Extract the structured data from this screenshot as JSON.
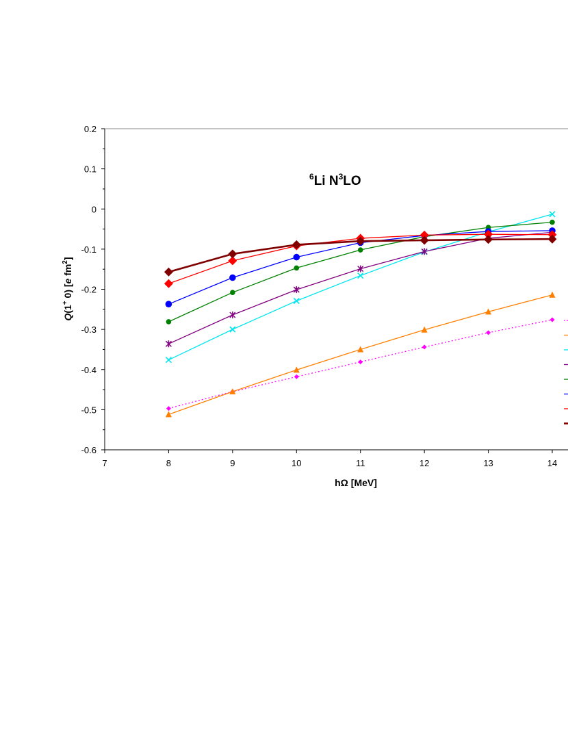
{
  "chart_data": {
    "type": "line",
    "title_parts": {
      "sup1": "6",
      "t1": "Li N",
      "sup2": "3",
      "t2": "LO"
    },
    "xlabel_parts": {
      "t1": "h",
      "omega": "Ω",
      "t2": " [MeV]"
    },
    "ylabel_parts": {
      "q": "Q",
      "p1": "(1",
      "sup_plus": "+",
      "p2": " 0)  [",
      "e": "e",
      "p3": " fm",
      "sup2": "2",
      "p4": "]"
    },
    "xlim": [
      7,
      14
    ],
    "ylim": [
      -0.6,
      0.2
    ],
    "x_ticks": [
      "7",
      "8",
      "9",
      "10",
      "11",
      "12",
      "13",
      "14"
    ],
    "y_ticks": [
      "0.2",
      "0.1",
      "0",
      "-0.1",
      "-0.2",
      "-0.3",
      "-0.4",
      "-0.5",
      "-0.6"
    ],
    "grid": false,
    "legend_placement": "right (cut off)",
    "x": [
      8,
      9,
      10,
      11,
      12,
      13,
      14
    ],
    "series": [
      {
        "color": "#ff00ff",
        "marker": "small-diamond",
        "dash": "dotted",
        "width": 1.3,
        "values": [
          -0.497,
          -0.455,
          -0.418,
          -0.381,
          -0.344,
          -0.308,
          -0.276
        ]
      },
      {
        "color": "#ff7f00",
        "marker": "triangle",
        "dash": "solid",
        "width": 1.3,
        "values": [
          -0.512,
          -0.455,
          -0.401,
          -0.35,
          -0.301,
          -0.256,
          -0.214
        ]
      },
      {
        "color": "#00e5ee",
        "marker": "x",
        "dash": "solid",
        "width": 1.3,
        "values": [
          -0.376,
          -0.3,
          -0.229,
          -0.166,
          -0.107,
          -0.057,
          -0.013
        ]
      },
      {
        "color": "#800080",
        "marker": "star",
        "dash": "solid",
        "width": 1.3,
        "values": [
          -0.336,
          -0.264,
          -0.201,
          -0.149,
          -0.106,
          -0.073,
          -0.058
        ]
      },
      {
        "color": "#008000",
        "marker": "circle-small",
        "dash": "solid",
        "width": 1.3,
        "values": [
          -0.281,
          -0.208,
          -0.147,
          -0.102,
          -0.069,
          -0.046,
          -0.033
        ]
      },
      {
        "color": "#0000ff",
        "marker": "circle",
        "dash": "solid",
        "width": 1.3,
        "values": [
          -0.237,
          -0.171,
          -0.12,
          -0.084,
          -0.066,
          -0.056,
          -0.054
        ]
      },
      {
        "color": "#ff0000",
        "marker": "diamond",
        "dash": "solid",
        "width": 1.3,
        "values": [
          -0.186,
          -0.129,
          -0.092,
          -0.073,
          -0.065,
          -0.063,
          -0.064
        ]
      },
      {
        "color": "#800000",
        "marker": "diamond",
        "dash": "solid",
        "width": 2.6,
        "values": [
          -0.157,
          -0.112,
          -0.089,
          -0.08,
          -0.078,
          -0.076,
          -0.075
        ]
      }
    ]
  }
}
